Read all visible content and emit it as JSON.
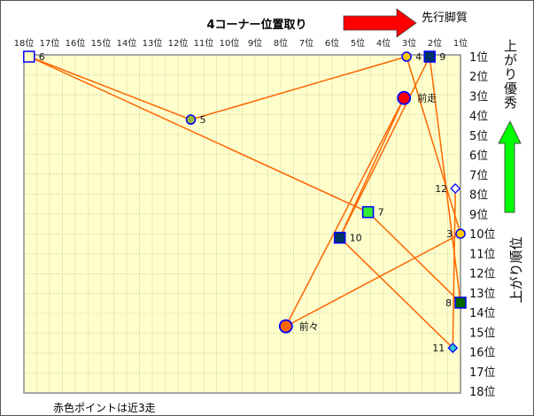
{
  "chart_data": {
    "type": "scatter",
    "title": "4コーナー位置取り",
    "xlabel_annotation": "先行脚質",
    "ylabel_top": "上がり優秀",
    "ylabel": "上がり順位",
    "footnote": "赤色ポイントは近3走",
    "xlim": [
      18,
      1
    ],
    "ylim": [
      1,
      18
    ],
    "x_ticks": [
      "18位",
      "17位",
      "16位",
      "15位",
      "14位",
      "13位",
      "12位",
      "11位",
      "10位",
      "9位",
      "8位",
      "7位",
      "6位",
      "5位",
      "4位",
      "3位",
      "2位",
      "1位"
    ],
    "y_ticks": [
      "1位",
      "2位",
      "3位",
      "4位",
      "5位",
      "6位",
      "7位",
      "8位",
      "9位",
      "10位",
      "11位",
      "12位",
      "13位",
      "14位",
      "15位",
      "16位",
      "17位",
      "18位"
    ],
    "grid": true,
    "colors": {
      "plot_bg": "#ffffcc",
      "line": "#ff6600",
      "marker_border": "#0000ff",
      "arrow_red": "#ff0000",
      "arrow_green": "#00ff00"
    },
    "points": [
      {
        "label": "6",
        "x": 17.8,
        "y": 1.0,
        "shape": "square",
        "color": "#ffffc0"
      },
      {
        "label": "5",
        "x": 11.5,
        "y": 4.2,
        "shape": "circle",
        "color": "#99bb33"
      },
      {
        "label": "4",
        "x": 3.1,
        "y": 1.0,
        "shape": "circle",
        "color": "#ffcc00"
      },
      {
        "label": "9",
        "x": 2.2,
        "y": 1.0,
        "shape": "square",
        "color": "#003366"
      },
      {
        "label": "前走",
        "x": 3.2,
        "y": 3.1,
        "shape": "bigcircle",
        "color": "#ff0000"
      },
      {
        "label": "7",
        "x": 4.6,
        "y": 8.9,
        "shape": "square",
        "color": "#33ee33"
      },
      {
        "label": "10",
        "x": 5.7,
        "y": 10.2,
        "shape": "square",
        "color": "#003366"
      },
      {
        "label": "3",
        "x": 1.0,
        "y": 10.0,
        "shape": "circle",
        "color": "#ffcc00"
      },
      {
        "label": "12",
        "x": 1.2,
        "y": 7.7,
        "shape": "diamond",
        "color": "#ffffff"
      },
      {
        "label": "8",
        "x": 1.0,
        "y": 13.5,
        "shape": "square",
        "color": "#006600"
      },
      {
        "label": "11",
        "x": 1.3,
        "y": 15.8,
        "shape": "diamond",
        "color": "#33cccc"
      },
      {
        "label": "前々",
        "x": 7.8,
        "y": 14.7,
        "shape": "bigcircle",
        "color": "#ff6600"
      }
    ],
    "edges": [
      [
        "6",
        "5"
      ],
      [
        "5",
        "4"
      ],
      [
        "6",
        "7"
      ],
      [
        "7",
        "8"
      ],
      [
        "4",
        "3"
      ],
      [
        "9",
        "10"
      ],
      [
        "9",
        "8"
      ],
      [
        "前走",
        "前々"
      ],
      [
        "前走",
        "10"
      ],
      [
        "前々",
        "3"
      ],
      [
        "10",
        "11"
      ],
      [
        "12",
        "11"
      ]
    ]
  }
}
